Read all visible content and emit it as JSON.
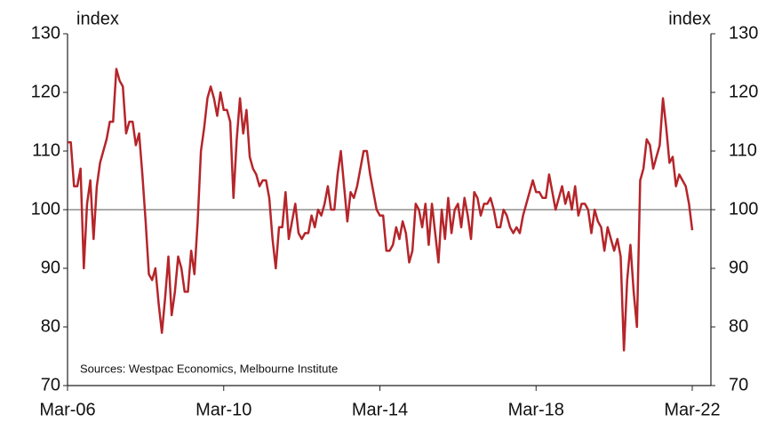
{
  "chart_data": {
    "type": "line",
    "y_label": "index",
    "y2_label": "index",
    "annotation": "Sources: Westpac Economics, Melbourne Institute",
    "x": [
      "Mar-06",
      "Apr-06",
      "May-06",
      "Jun-06",
      "Jul-06",
      "Aug-06",
      "Sep-06",
      "Oct-06",
      "Nov-06",
      "Dec-06",
      "Jan-07",
      "Feb-07",
      "Mar-07",
      "Apr-07",
      "May-07",
      "Jun-07",
      "Jul-07",
      "Aug-07",
      "Sep-07",
      "Oct-07",
      "Nov-07",
      "Dec-07",
      "Jan-08",
      "Feb-08",
      "Mar-08",
      "Apr-08",
      "May-08",
      "Jun-08",
      "Jul-08",
      "Aug-08",
      "Sep-08",
      "Oct-08",
      "Nov-08",
      "Dec-08",
      "Jan-09",
      "Feb-09",
      "Mar-09",
      "Apr-09",
      "May-09",
      "Jun-09",
      "Jul-09",
      "Aug-09",
      "Sep-09",
      "Oct-09",
      "Nov-09",
      "Dec-09",
      "Jan-10",
      "Feb-10",
      "Mar-10",
      "Apr-10",
      "May-10",
      "Jun-10",
      "Jul-10",
      "Aug-10",
      "Sep-10",
      "Oct-10",
      "Nov-10",
      "Dec-10",
      "Jan-11",
      "Feb-11",
      "Mar-11",
      "Apr-11",
      "May-11",
      "Jun-11",
      "Jul-11",
      "Aug-11",
      "Sep-11",
      "Oct-11",
      "Nov-11",
      "Dec-11",
      "Jan-12",
      "Feb-12",
      "Mar-12",
      "Apr-12",
      "May-12",
      "Jun-12",
      "Jul-12",
      "Aug-12",
      "Sep-12",
      "Oct-12",
      "Nov-12",
      "Dec-12",
      "Jan-13",
      "Feb-13",
      "Mar-13",
      "Apr-13",
      "May-13",
      "Jun-13",
      "Jul-13",
      "Aug-13",
      "Sep-13",
      "Oct-13",
      "Nov-13",
      "Dec-13",
      "Jan-14",
      "Feb-14",
      "Mar-14",
      "Apr-14",
      "May-14",
      "Jun-14",
      "Jul-14",
      "Aug-14",
      "Sep-14",
      "Oct-14",
      "Nov-14",
      "Dec-14",
      "Jan-15",
      "Feb-15",
      "Mar-15",
      "Apr-15",
      "May-15",
      "Jun-15",
      "Jul-15",
      "Aug-15",
      "Sep-15",
      "Oct-15",
      "Nov-15",
      "Dec-15",
      "Jan-16",
      "Feb-16",
      "Mar-16",
      "Apr-16",
      "May-16",
      "Jun-16",
      "Jul-16",
      "Aug-16",
      "Sep-16",
      "Oct-16",
      "Nov-16",
      "Dec-16",
      "Jan-17",
      "Feb-17",
      "Mar-17",
      "Apr-17",
      "May-17",
      "Jun-17",
      "Jul-17",
      "Aug-17",
      "Sep-17",
      "Oct-17",
      "Nov-17",
      "Dec-17",
      "Jan-18",
      "Feb-18",
      "Mar-18",
      "Apr-18",
      "May-18",
      "Jun-18",
      "Jul-18",
      "Aug-18",
      "Sep-18",
      "Oct-18",
      "Nov-18",
      "Dec-18",
      "Jan-19",
      "Feb-19",
      "Mar-19",
      "Apr-19",
      "May-19",
      "Jun-19",
      "Jul-19",
      "Aug-19",
      "Sep-19",
      "Oct-19",
      "Nov-19",
      "Dec-19",
      "Jan-20",
      "Feb-20",
      "Mar-20",
      "Apr-20",
      "May-20",
      "Jun-20",
      "Jul-20",
      "Aug-20",
      "Sep-20",
      "Oct-20",
      "Nov-20",
      "Dec-20",
      "Jan-21",
      "Feb-21",
      "Mar-21",
      "Apr-21",
      "May-21",
      "Jun-21",
      "Jul-21",
      "Aug-21",
      "Sep-21",
      "Oct-21",
      "Nov-21",
      "Dec-21",
      "Jan-22",
      "Feb-22",
      "Mar-22"
    ],
    "xticks": [
      "Mar-06",
      "Mar-10",
      "Mar-14",
      "Mar-18",
      "Mar-22"
    ],
    "series": [
      {
        "color": "#b5252a",
        "values": [
          111.5,
          111.5,
          104,
          104,
          107,
          90,
          101,
          105,
          95,
          104,
          108,
          110,
          112,
          115,
          115,
          124,
          122,
          121,
          113,
          115,
          115,
          111,
          113,
          106,
          98,
          89,
          88,
          90,
          84,
          79,
          85,
          92,
          82,
          86,
          92,
          90,
          86,
          86,
          93,
          89,
          98,
          110,
          114,
          119,
          121,
          119,
          116,
          120,
          117,
          117,
          115,
          102,
          112,
          119,
          113,
          117,
          109,
          107,
          106,
          104,
          105,
          105,
          102,
          95,
          90,
          97,
          97,
          103,
          95,
          98,
          101,
          96,
          95,
          96,
          96,
          99,
          97,
          100,
          99,
          101,
          104,
          100,
          100,
          106,
          110,
          104,
          98,
          103,
          102,
          104,
          107,
          110,
          110,
          106,
          103,
          100,
          99,
          99,
          93,
          93,
          94,
          97,
          95,
          98,
          96,
          91,
          93,
          101,
          100,
          97,
          101,
          94,
          101,
          96,
          91,
          100,
          95,
          102,
          96,
          100,
          101,
          97,
          102,
          99,
          95,
          103,
          102,
          99,
          101,
          101,
          102,
          100,
          97,
          97,
          100,
          99,
          97,
          96,
          97,
          96,
          99,
          101,
          103,
          105,
          103,
          103,
          102,
          102,
          106,
          103,
          100,
          102,
          104,
          101,
          103,
          100,
          104,
          99,
          101,
          101,
          100,
          96,
          100,
          98,
          97,
          93,
          97,
          95,
          93,
          95,
          92,
          76,
          88,
          94,
          86,
          80,
          105,
          107,
          112,
          111,
          107,
          109,
          111,
          119,
          114,
          108,
          109,
          104,
          106,
          105,
          104,
          101,
          96.5
        ]
      }
    ],
    "ylim": [
      70,
      130
    ],
    "yticks": [
      70,
      80,
      90,
      100,
      110,
      120,
      130
    ],
    "y2lim": [
      70,
      130
    ],
    "y2ticks": [
      70,
      80,
      90,
      100,
      110,
      120,
      130
    ],
    "reference_line": 100
  }
}
